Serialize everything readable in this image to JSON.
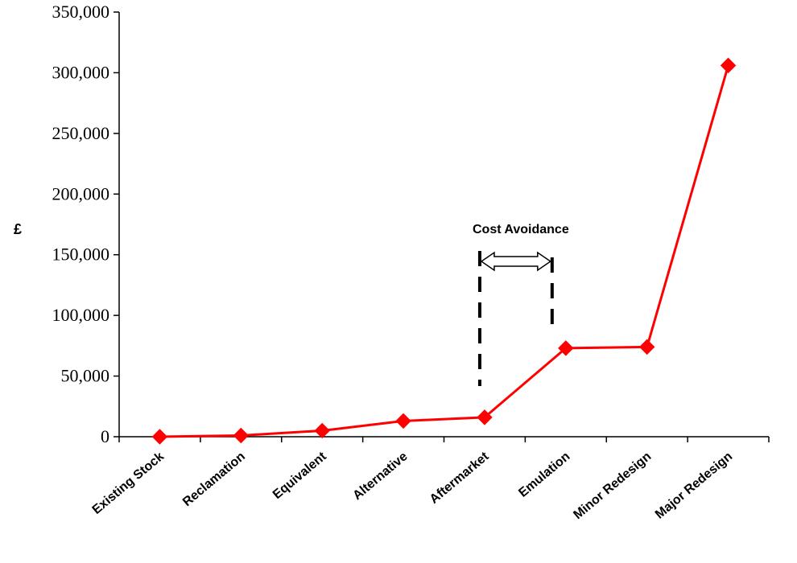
{
  "chart_data": {
    "type": "line",
    "title": "",
    "xlabel": "",
    "ylabel": "£",
    "ylim": [
      0,
      350000
    ],
    "y_ticks": [
      0,
      50000,
      100000,
      150000,
      200000,
      250000,
      300000,
      350000
    ],
    "y_tick_labels": [
      "0",
      "50,000",
      "100,000",
      "150,000",
      "200,000",
      "250,000",
      "300,000",
      "350,000"
    ],
    "categories": [
      "Existing Stock",
      "Reclamation",
      "Equivalent",
      "Alternative",
      "Aftermarket",
      "Emulation",
      "Minor Redesign",
      "Major Redesign"
    ],
    "series": [
      {
        "values": [
          0,
          1000,
          5000,
          13000,
          16000,
          73000,
          74000,
          306000
        ]
      }
    ],
    "grid": false,
    "annotation": {
      "text": "Cost Avoidance",
      "from_category": "Aftermarket",
      "to_category": "Emulation"
    },
    "colors": {
      "line": "#ff0000",
      "marker": "#ff0000",
      "axis": "#000000"
    }
  }
}
